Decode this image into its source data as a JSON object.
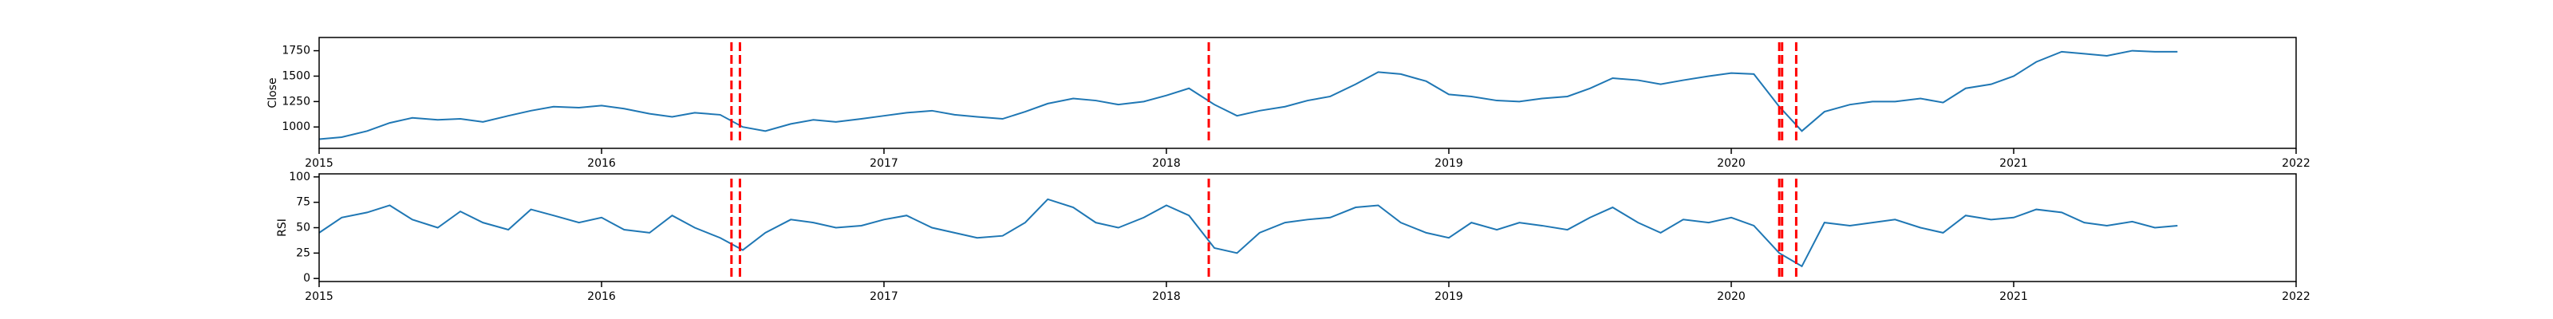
{
  "chart_data": [
    {
      "type": "line",
      "ylabel": "Close",
      "color": "#1f77b4",
      "x": [
        2015.0,
        2015.08,
        2015.17,
        2015.25,
        2015.33,
        2015.42,
        2015.5,
        2015.58,
        2015.67,
        2015.75,
        2015.83,
        2015.92,
        2016.0,
        2016.08,
        2016.17,
        2016.25,
        2016.33,
        2016.42,
        2016.5,
        2016.58,
        2016.67,
        2016.75,
        2016.83,
        2016.92,
        2017.0,
        2017.08,
        2017.17,
        2017.25,
        2017.33,
        2017.42,
        2017.5,
        2017.58,
        2017.67,
        2017.75,
        2017.83,
        2017.92,
        2018.0,
        2018.08,
        2018.17,
        2018.25,
        2018.33,
        2018.42,
        2018.5,
        2018.58,
        2018.67,
        2018.75,
        2018.83,
        2018.92,
        2019.0,
        2019.08,
        2019.17,
        2019.25,
        2019.33,
        2019.42,
        2019.5,
        2019.58,
        2019.67,
        2019.75,
        2019.83,
        2019.92,
        2020.0,
        2020.08,
        2020.17,
        2020.25,
        2020.33,
        2020.42,
        2020.5,
        2020.58,
        2020.67,
        2020.75,
        2020.83,
        2020.92,
        2021.0,
        2021.08,
        2021.17,
        2021.25,
        2021.33,
        2021.42,
        2021.5,
        2021.58
      ],
      "values": [
        880,
        900,
        960,
        1040,
        1090,
        1070,
        1080,
        1050,
        1110,
        1160,
        1200,
        1190,
        1210,
        1180,
        1130,
        1100,
        1140,
        1120,
        1000,
        960,
        1030,
        1070,
        1050,
        1080,
        1110,
        1140,
        1160,
        1120,
        1100,
        1080,
        1150,
        1230,
        1280,
        1260,
        1220,
        1250,
        1310,
        1380,
        1220,
        1110,
        1160,
        1200,
        1260,
        1300,
        1420,
        1540,
        1520,
        1450,
        1320,
        1300,
        1260,
        1250,
        1280,
        1300,
        1380,
        1480,
        1460,
        1420,
        1460,
        1500,
        1530,
        1520,
        1200,
        960,
        1150,
        1220,
        1250,
        1250,
        1280,
        1240,
        1380,
        1420,
        1500,
        1640,
        1740,
        1720,
        1700,
        1750,
        1740,
        1740
      ],
      "xlim": [
        2015,
        2022
      ],
      "xticks": [
        2015,
        2016,
        2017,
        2018,
        2019,
        2020,
        2021,
        2022
      ],
      "ylim": [
        790,
        1880
      ],
      "yticks": [
        1000,
        1250,
        1500,
        1750
      ],
      "vlines": [
        2016.46,
        2016.49,
        2018.15,
        2020.17,
        2020.18,
        2020.23
      ],
      "vline_color": "#ff0000"
    },
    {
      "type": "line",
      "ylabel": "RSI",
      "color": "#1f77b4",
      "x": [
        2015.0,
        2015.08,
        2015.17,
        2015.25,
        2015.33,
        2015.42,
        2015.5,
        2015.58,
        2015.67,
        2015.75,
        2015.83,
        2015.92,
        2016.0,
        2016.08,
        2016.17,
        2016.25,
        2016.33,
        2016.42,
        2016.5,
        2016.58,
        2016.67,
        2016.75,
        2016.83,
        2016.92,
        2017.0,
        2017.08,
        2017.17,
        2017.25,
        2017.33,
        2017.42,
        2017.5,
        2017.58,
        2017.67,
        2017.75,
        2017.83,
        2017.92,
        2018.0,
        2018.08,
        2018.17,
        2018.25,
        2018.33,
        2018.42,
        2018.5,
        2018.58,
        2018.67,
        2018.75,
        2018.83,
        2018.92,
        2019.0,
        2019.08,
        2019.17,
        2019.25,
        2019.33,
        2019.42,
        2019.5,
        2019.58,
        2019.67,
        2019.75,
        2019.83,
        2019.92,
        2020.0,
        2020.08,
        2020.17,
        2020.25,
        2020.33,
        2020.42,
        2020.5,
        2020.58,
        2020.67,
        2020.75,
        2020.83,
        2020.92,
        2021.0,
        2021.08,
        2021.17,
        2021.25,
        2021.33,
        2021.42,
        2021.5,
        2021.58
      ],
      "values": [
        45,
        60,
        65,
        72,
        58,
        50,
        66,
        55,
        48,
        68,
        62,
        55,
        60,
        48,
        45,
        62,
        50,
        40,
        28,
        45,
        58,
        55,
        50,
        52,
        58,
        62,
        50,
        45,
        40,
        42,
        55,
        78,
        70,
        55,
        50,
        60,
        72,
        62,
        30,
        25,
        45,
        55,
        58,
        60,
        70,
        72,
        55,
        45,
        40,
        55,
        48,
        55,
        52,
        48,
        60,
        70,
        55,
        45,
        58,
        55,
        60,
        52,
        25,
        12,
        55,
        52,
        55,
        58,
        50,
        45,
        62,
        58,
        60,
        68,
        65,
        55,
        52,
        56,
        50,
        52
      ],
      "xlim": [
        2015,
        2022
      ],
      "xticks": [
        2015,
        2016,
        2017,
        2018,
        2019,
        2020,
        2021,
        2022
      ],
      "ylim": [
        -3,
        103
      ],
      "yticks": [
        0,
        25,
        50,
        75,
        100
      ],
      "vlines": [
        2016.46,
        2016.49,
        2018.15,
        2020.17,
        2020.18,
        2020.23
      ],
      "vline_color": "#ff0000"
    }
  ]
}
